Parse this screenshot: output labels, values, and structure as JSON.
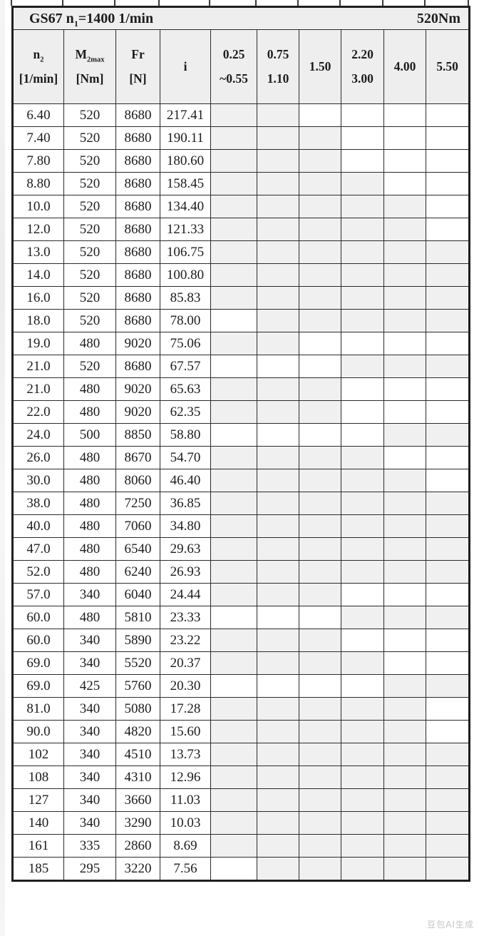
{
  "title": {
    "left_prefix": "GS67 n",
    "left_sub": "1",
    "left_rest": "=1400 1/min",
    "right": "520Nm"
  },
  "headers": {
    "n2": {
      "base": "n",
      "sub": "2",
      "unit": "[1/min]"
    },
    "m2max": {
      "base": "M",
      "sub": "2max",
      "unit": "[Nm]"
    },
    "fr": {
      "base": "Fr",
      "unit": "[N]"
    },
    "i": {
      "label": "i"
    },
    "ratios": [
      {
        "line1": "0.25",
        "line2": "~0.55"
      },
      {
        "line1": "0.75",
        "line2": "1.10"
      },
      {
        "line1": "1.50",
        "line2": ""
      },
      {
        "line1": "2.20",
        "line2": "3.00"
      },
      {
        "line1": "4.00",
        "line2": ""
      },
      {
        "line1": "5.50",
        "line2": ""
      }
    ]
  },
  "table": {
    "rows": [
      {
        "n2": "6.40",
        "m2max": "520",
        "fr": "8680",
        "i": "217.41",
        "shaded": [
          1,
          1,
          0,
          0,
          0,
          0
        ]
      },
      {
        "n2": "7.40",
        "m2max": "520",
        "fr": "8680",
        "i": "190.11",
        "shaded": [
          1,
          1,
          1,
          0,
          0,
          0
        ]
      },
      {
        "n2": "7.80",
        "m2max": "520",
        "fr": "8680",
        "i": "180.60",
        "shaded": [
          1,
          1,
          1,
          0,
          0,
          0
        ]
      },
      {
        "n2": "8.80",
        "m2max": "520",
        "fr": "8680",
        "i": "158.45",
        "shaded": [
          1,
          1,
          1,
          1,
          0,
          0
        ]
      },
      {
        "n2": "10.0",
        "m2max": "520",
        "fr": "8680",
        "i": "134.40",
        "shaded": [
          1,
          1,
          1,
          1,
          1,
          0
        ]
      },
      {
        "n2": "12.0",
        "m2max": "520",
        "fr": "8680",
        "i": "121.33",
        "shaded": [
          1,
          1,
          1,
          1,
          1,
          0
        ]
      },
      {
        "n2": "13.0",
        "m2max": "520",
        "fr": "8680",
        "i": "106.75",
        "shaded": [
          1,
          1,
          1,
          1,
          1,
          1
        ]
      },
      {
        "n2": "14.0",
        "m2max": "520",
        "fr": "8680",
        "i": "100.80",
        "shaded": [
          1,
          1,
          1,
          1,
          1,
          1
        ]
      },
      {
        "n2": "16.0",
        "m2max": "520",
        "fr": "8680",
        "i": "85.83",
        "shaded": [
          1,
          1,
          1,
          1,
          1,
          1
        ]
      },
      {
        "n2": "18.0",
        "m2max": "520",
        "fr": "8680",
        "i": "78.00",
        "shaded": [
          0,
          1,
          1,
          1,
          1,
          1
        ]
      },
      {
        "n2": "19.0",
        "m2max": "480",
        "fr": "9020",
        "i": "75.06",
        "shaded": [
          1,
          1,
          0,
          0,
          0,
          0
        ]
      },
      {
        "n2": "21.0",
        "m2max": "520",
        "fr": "8680",
        "i": "67.57",
        "shaded": [
          0,
          0,
          0,
          1,
          1,
          1
        ]
      },
      {
        "n2": "21.0",
        "m2max": "480",
        "fr": "9020",
        "i": "65.63",
        "shaded": [
          1,
          1,
          1,
          0,
          0,
          0
        ]
      },
      {
        "n2": "22.0",
        "m2max": "480",
        "fr": "9020",
        "i": "62.35",
        "shaded": [
          1,
          1,
          1,
          0,
          0,
          0
        ]
      },
      {
        "n2": "24.0",
        "m2max": "500",
        "fr": "8850",
        "i": "58.80",
        "shaded": [
          0,
          0,
          0,
          0,
          1,
          1
        ]
      },
      {
        "n2": "26.0",
        "m2max": "480",
        "fr": "8670",
        "i": "54.70",
        "shaded": [
          1,
          1,
          1,
          1,
          0,
          0
        ]
      },
      {
        "n2": "30.0",
        "m2max": "480",
        "fr": "8060",
        "i": "46.40",
        "shaded": [
          1,
          1,
          1,
          1,
          1,
          0
        ]
      },
      {
        "n2": "38.0",
        "m2max": "480",
        "fr": "7250",
        "i": "36.85",
        "shaded": [
          1,
          1,
          1,
          1,
          1,
          1
        ]
      },
      {
        "n2": "40.0",
        "m2max": "480",
        "fr": "7060",
        "i": "34.80",
        "shaded": [
          1,
          1,
          1,
          1,
          1,
          1
        ]
      },
      {
        "n2": "47.0",
        "m2max": "480",
        "fr": "6540",
        "i": "29.63",
        "shaded": [
          1,
          1,
          1,
          1,
          1,
          1
        ]
      },
      {
        "n2": "52.0",
        "m2max": "480",
        "fr": "6240",
        "i": "26.93",
        "shaded": [
          1,
          1,
          1,
          1,
          1,
          1
        ]
      },
      {
        "n2": "57.0",
        "m2max": "340",
        "fr": "6040",
        "i": "24.44",
        "shaded": [
          1,
          1,
          1,
          0,
          0,
          0
        ]
      },
      {
        "n2": "60.0",
        "m2max": "480",
        "fr": "5810",
        "i": "23.33",
        "shaded": [
          0,
          0,
          0,
          1,
          1,
          1
        ]
      },
      {
        "n2": "60.0",
        "m2max": "340",
        "fr": "5890",
        "i": "23.22",
        "shaded": [
          1,
          1,
          1,
          0,
          0,
          0
        ]
      },
      {
        "n2": "69.0",
        "m2max": "340",
        "fr": "5520",
        "i": "20.37",
        "shaded": [
          1,
          1,
          1,
          1,
          0,
          0
        ]
      },
      {
        "n2": "69.0",
        "m2max": "425",
        "fr": "5760",
        "i": "20.30",
        "shaded": [
          0,
          0,
          0,
          0,
          1,
          1
        ]
      },
      {
        "n2": "81.0",
        "m2max": "340",
        "fr": "5080",
        "i": "17.28",
        "shaded": [
          1,
          1,
          1,
          1,
          1,
          0
        ]
      },
      {
        "n2": "90.0",
        "m2max": "340",
        "fr": "4820",
        "i": "15.60",
        "shaded": [
          1,
          1,
          1,
          1,
          1,
          0
        ]
      },
      {
        "n2": "102",
        "m2max": "340",
        "fr": "4510",
        "i": "13.73",
        "shaded": [
          1,
          1,
          1,
          1,
          1,
          1
        ]
      },
      {
        "n2": "108",
        "m2max": "340",
        "fr": "4310",
        "i": "12.96",
        "shaded": [
          1,
          1,
          1,
          1,
          1,
          1
        ]
      },
      {
        "n2": "127",
        "m2max": "340",
        "fr": "3660",
        "i": "11.03",
        "shaded": [
          1,
          1,
          1,
          1,
          1,
          1
        ]
      },
      {
        "n2": "140",
        "m2max": "340",
        "fr": "3290",
        "i": "10.03",
        "shaded": [
          1,
          1,
          1,
          1,
          1,
          1
        ]
      },
      {
        "n2": "161",
        "m2max": "335",
        "fr": "2860",
        "i": "8.69",
        "shaded": [
          1,
          1,
          1,
          1,
          1,
          1
        ]
      },
      {
        "n2": "185",
        "m2max": "295",
        "fr": "3220",
        "i": "7.56",
        "shaded": [
          0,
          1,
          1,
          1,
          1,
          1
        ]
      }
    ]
  },
  "watermark": "豆包AI生成",
  "colors": {
    "header_bg": "#eeeeee",
    "shaded_cell": "#f0f0f0",
    "border": "#2b2b2b"
  }
}
